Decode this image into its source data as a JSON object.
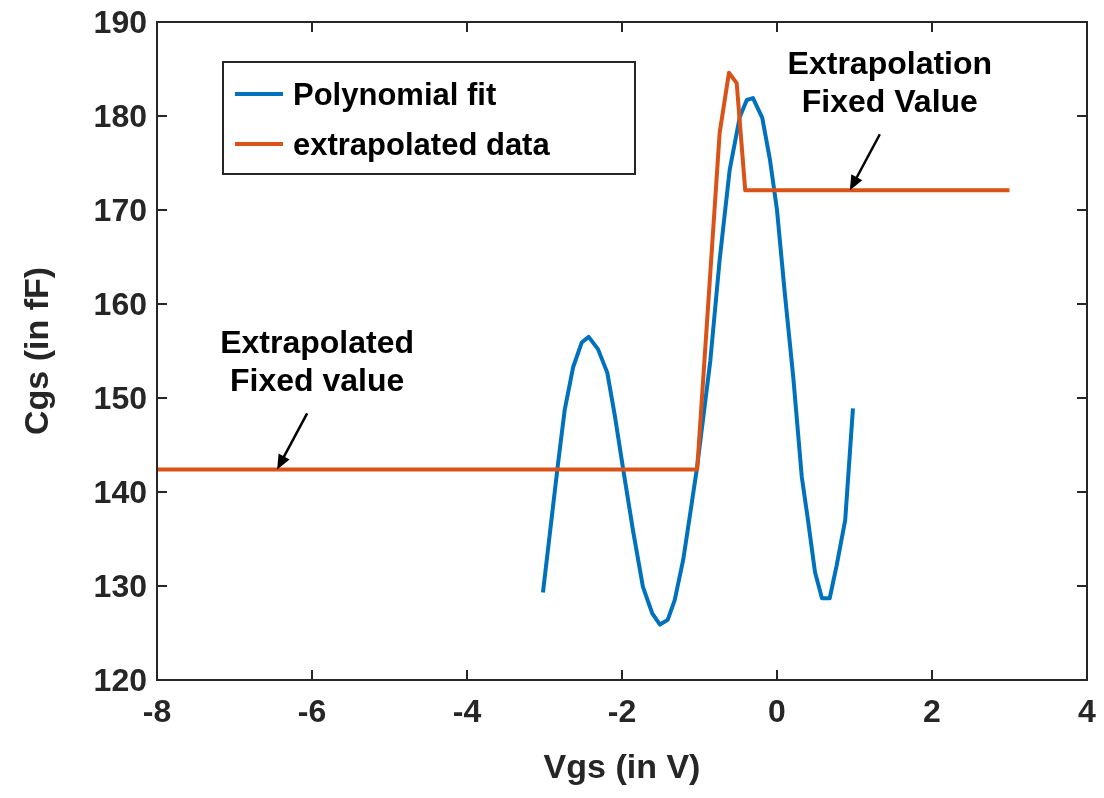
{
  "chart_data": {
    "type": "line",
    "xlabel": "Vgs (in V)",
    "ylabel": "Cgs (in fF)",
    "xlim": [
      -8,
      4
    ],
    "ylim": [
      120,
      190
    ],
    "xticks": [
      -8,
      -6,
      -4,
      -2,
      0,
      2,
      4
    ],
    "yticks": [
      120,
      130,
      140,
      150,
      160,
      170,
      180,
      190
    ],
    "grid": false,
    "legend": "top left",
    "line_style": "solid",
    "series": [
      {
        "name": "Polynomial fit",
        "color": "#0072bd",
        "x": [
          -3.02,
          -2.83,
          -2.74,
          -2.63,
          -2.52,
          -2.43,
          -2.31,
          -2.19,
          -2.09,
          -1.99,
          -1.86,
          -1.73,
          -1.61,
          -1.51,
          -1.41,
          -1.32,
          -1.21,
          -1.1,
          -1.03,
          -0.86,
          -0.74,
          -0.61,
          -0.48,
          -0.39,
          -0.31,
          -0.19,
          -0.09,
          0.0,
          0.1,
          0.21,
          0.32,
          0.4,
          0.49,
          0.58,
          0.68,
          0.77,
          0.88,
          0.98
        ],
        "values": [
          129.3,
          142.7,
          148.7,
          153.3,
          155.9,
          156.5,
          155.2,
          152.7,
          148,
          142.7,
          136,
          129.9,
          127.1,
          125.9,
          126.4,
          128.5,
          132.8,
          138.8,
          142.7,
          154,
          164.7,
          174.3,
          179.9,
          181.7,
          181.9,
          179.8,
          175.3,
          170,
          161.2,
          152.2,
          141.6,
          137,
          131.5,
          128.7,
          128.7,
          132.2,
          137,
          148.9
        ]
      },
      {
        "name": "extrapolated data",
        "color": "#d95319",
        "x": [
          -8,
          -1.03,
          -0.74,
          -0.62,
          -0.52,
          -0.41,
          3
        ],
        "values": [
          142.4,
          142.4,
          178.2,
          184.6,
          183.5,
          172.1,
          172.1
        ]
      }
    ],
    "annotations": [
      {
        "text": "Extrapolation\nFixed Value",
        "x": 0.94,
        "y": 172.1
      },
      {
        "text": "Extrapolated\nFixed value",
        "x": -6.45,
        "y": 142.4
      }
    ]
  }
}
